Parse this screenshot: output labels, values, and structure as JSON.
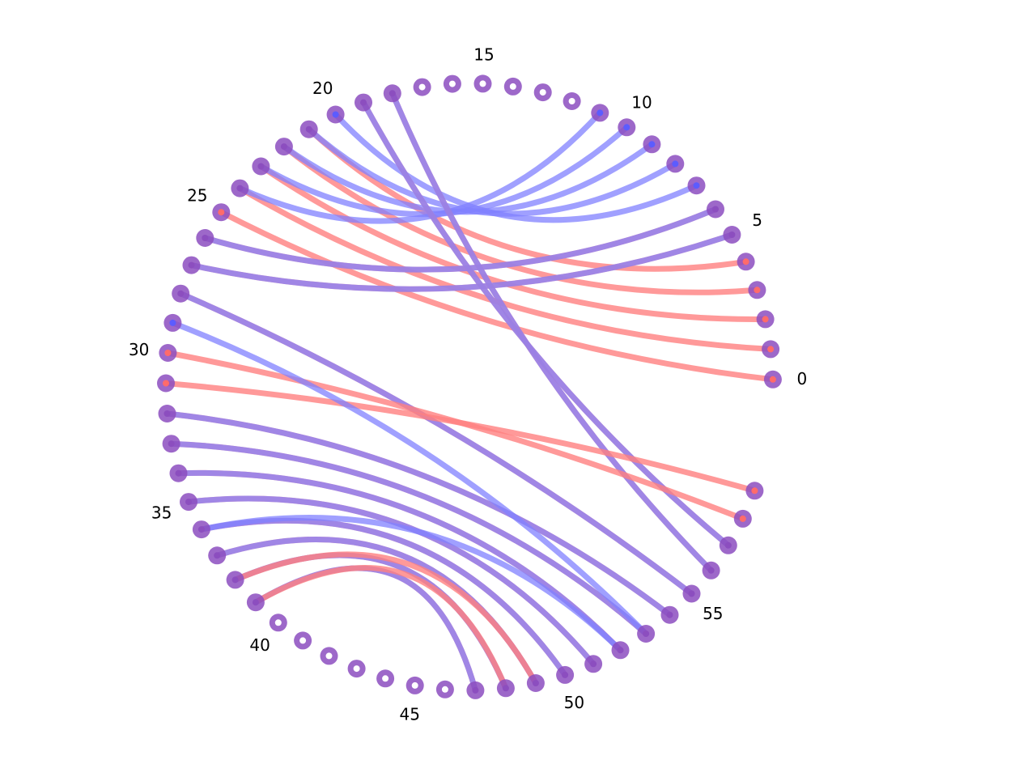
{
  "colors": {
    "red": "#ff8080",
    "blue": "#8080ff",
    "purple": "#8c4ebf",
    "node_dot_white": "#ffffff",
    "node_dot_red": "#ff6b6b",
    "node_dot_blue": "#5c5cff"
  },
  "node_count": 60,
  "node_labels": [
    {
      "index": 0,
      "text": "0"
    },
    {
      "index": 5,
      "text": "5"
    },
    {
      "index": 10,
      "text": "10"
    },
    {
      "index": 15,
      "text": "15"
    },
    {
      "index": 20,
      "text": "20"
    },
    {
      "index": 25,
      "text": "25"
    },
    {
      "index": 30,
      "text": "30"
    },
    {
      "index": 35,
      "text": "35"
    },
    {
      "index": 40,
      "text": "40"
    },
    {
      "index": 45,
      "text": "45"
    },
    {
      "index": 50,
      "text": "50"
    },
    {
      "index": 55,
      "text": "55"
    }
  ],
  "links": [
    {
      "a": 0,
      "b": 25,
      "layers": [
        "red"
      ]
    },
    {
      "a": 1,
      "b": 24,
      "layers": [
        "red"
      ]
    },
    {
      "a": 2,
      "b": 23,
      "layers": [
        "red"
      ]
    },
    {
      "a": 3,
      "b": 22,
      "layers": [
        "red"
      ]
    },
    {
      "a": 4,
      "b": 21,
      "layers": [
        "red"
      ]
    },
    {
      "a": 5,
      "b": 27,
      "layers": [
        "red",
        "blue"
      ]
    },
    {
      "a": 6,
      "b": 26,
      "layers": [
        "red",
        "blue"
      ]
    },
    {
      "a": 7,
      "b": 20,
      "layers": [
        "blue"
      ]
    },
    {
      "a": 8,
      "b": 21,
      "layers": [
        "blue"
      ]
    },
    {
      "a": 9,
      "b": 22,
      "layers": [
        "blue"
      ]
    },
    {
      "a": 10,
      "b": 23,
      "layers": [
        "blue"
      ]
    },
    {
      "a": 11,
      "b": 24,
      "layers": [
        "blue"
      ]
    },
    {
      "a": 18,
      "b": 56,
      "layers": [
        "red",
        "blue"
      ]
    },
    {
      "a": 19,
      "b": 57,
      "layers": [
        "red",
        "blue"
      ]
    },
    {
      "a": 28,
      "b": 55,
      "layers": [
        "red",
        "blue"
      ]
    },
    {
      "a": 30,
      "b": 58,
      "layers": [
        "red"
      ]
    },
    {
      "a": 31,
      "b": 59,
      "layers": [
        "red"
      ]
    },
    {
      "a": 32,
      "b": 54,
      "layers": [
        "red",
        "blue"
      ]
    },
    {
      "a": 33,
      "b": 53,
      "layers": [
        "red",
        "blue"
      ]
    },
    {
      "a": 34,
      "b": 52,
      "layers": [
        "red",
        "blue"
      ]
    },
    {
      "a": 35,
      "b": 51,
      "layers": [
        "red",
        "blue"
      ]
    },
    {
      "a": 36,
      "b": 50,
      "layers": [
        "red",
        "blue"
      ]
    },
    {
      "a": 37,
      "b": 49,
      "layers": [
        "red",
        "blue"
      ]
    },
    {
      "a": 38,
      "b": 48,
      "layers": [
        "red",
        "blue"
      ]
    },
    {
      "a": 39,
      "b": 47,
      "layers": [
        "red",
        "blue"
      ]
    },
    {
      "a": 29,
      "b": 53,
      "layers": [
        "blue"
      ]
    },
    {
      "a": 36,
      "b": 52,
      "layers": [
        "blue"
      ]
    },
    {
      "a": 38,
      "b": 49,
      "layers": [
        "red"
      ]
    },
    {
      "a": 39,
      "b": 48,
      "layers": [
        "red"
      ]
    }
  ]
}
